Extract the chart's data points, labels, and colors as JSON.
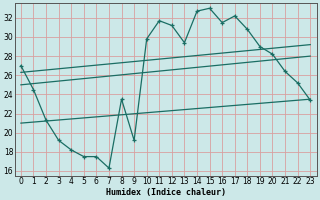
{
  "xlabel": "Humidex (Indice chaleur)",
  "bg_color": "#cce8e8",
  "grid_color": "#d8a0a0",
  "line_color": "#1a6e64",
  "xlim": [
    -0.5,
    23.5
  ],
  "ylim": [
    15.5,
    33.5
  ],
  "yticks": [
    16,
    18,
    20,
    22,
    24,
    26,
    28,
    30,
    32
  ],
  "xticks": [
    0,
    1,
    2,
    3,
    4,
    5,
    6,
    7,
    8,
    9,
    10,
    11,
    12,
    13,
    14,
    15,
    16,
    17,
    18,
    19,
    20,
    21,
    22,
    23
  ],
  "main_x": [
    0,
    1,
    2,
    3,
    4,
    5,
    6,
    7,
    8,
    9,
    10,
    11,
    12,
    13,
    14,
    15,
    16,
    17,
    18,
    19,
    20,
    21,
    22,
    23
  ],
  "main_y": [
    27.0,
    24.5,
    21.3,
    19.2,
    18.2,
    17.5,
    17.5,
    16.3,
    23.5,
    19.2,
    29.8,
    31.7,
    31.2,
    29.4,
    32.7,
    33.0,
    31.5,
    32.2,
    30.8,
    29.0,
    28.2,
    26.4,
    25.2,
    23.4
  ],
  "env_line1": {
    "x": [
      0,
      23
    ],
    "y": [
      26.3,
      29.2
    ]
  },
  "env_line2": {
    "x": [
      0,
      23
    ],
    "y": [
      25.0,
      28.0
    ]
  },
  "env_line3": {
    "x": [
      0,
      23
    ],
    "y": [
      21.0,
      23.5
    ]
  }
}
